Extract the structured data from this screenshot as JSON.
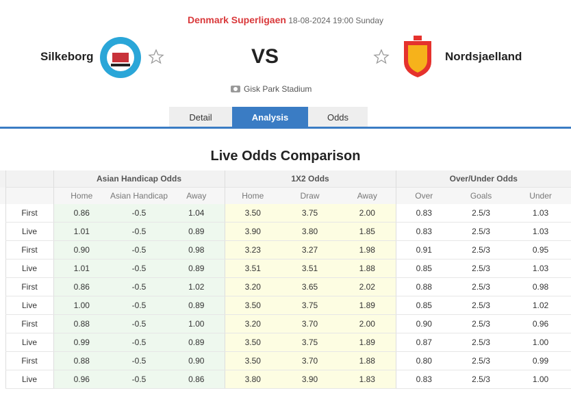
{
  "header": {
    "league": "Denmark Superligaen",
    "datetime": "18-08-2024 19:00 Sunday"
  },
  "match": {
    "home": "Silkeborg",
    "vs": "VS",
    "away": "Nordsjaelland",
    "venue": "Gisk Park Stadium"
  },
  "tabs": [
    "Detail",
    "Analysis",
    "Odds"
  ],
  "active_tab": 1,
  "section": {
    "title": "Live Odds Comparison",
    "groups": [
      "Asian Handicap Odds",
      "1X2 Odds",
      "Over/Under Odds"
    ],
    "columns": [
      "Home",
      "Asian Handicap",
      "Away",
      "Home",
      "Draw",
      "Away",
      "Over",
      "Goals",
      "Under"
    ],
    "rows": [
      {
        "label": "First",
        "values": [
          "0.86",
          "-0.5",
          "1.04",
          "3.50",
          "3.75",
          "2.00",
          "0.83",
          "2.5/3",
          "1.03"
        ]
      },
      {
        "label": "Live",
        "values": [
          "1.01",
          "-0.5",
          "0.89",
          "3.90",
          "3.80",
          "1.85",
          "0.83",
          "2.5/3",
          "1.03"
        ]
      },
      {
        "label": "First",
        "values": [
          "0.90",
          "-0.5",
          "0.98",
          "3.23",
          "3.27",
          "1.98",
          "0.91",
          "2.5/3",
          "0.95"
        ]
      },
      {
        "label": "Live",
        "values": [
          "1.01",
          "-0.5",
          "0.89",
          "3.51",
          "3.51",
          "1.88",
          "0.85",
          "2.5/3",
          "1.03"
        ]
      },
      {
        "label": "First",
        "values": [
          "0.86",
          "-0.5",
          "1.02",
          "3.20",
          "3.65",
          "2.02",
          "0.88",
          "2.5/3",
          "0.98"
        ]
      },
      {
        "label": "Live",
        "values": [
          "1.00",
          "-0.5",
          "0.89",
          "3.50",
          "3.75",
          "1.89",
          "0.85",
          "2.5/3",
          "1.02"
        ]
      },
      {
        "label": "First",
        "values": [
          "0.88",
          "-0.5",
          "1.00",
          "3.20",
          "3.70",
          "2.00",
          "0.90",
          "2.5/3",
          "0.96"
        ]
      },
      {
        "label": "Live",
        "values": [
          "0.99",
          "-0.5",
          "0.89",
          "3.50",
          "3.75",
          "1.89",
          "0.87",
          "2.5/3",
          "1.00"
        ]
      },
      {
        "label": "First",
        "values": [
          "0.88",
          "-0.5",
          "0.90",
          "3.50",
          "3.70",
          "1.88",
          "0.80",
          "2.5/3",
          "0.99"
        ]
      },
      {
        "label": "Live",
        "values": [
          "0.96",
          "-0.5",
          "0.86",
          "3.80",
          "3.90",
          "1.83",
          "0.83",
          "2.5/3",
          "1.00"
        ]
      }
    ]
  }
}
